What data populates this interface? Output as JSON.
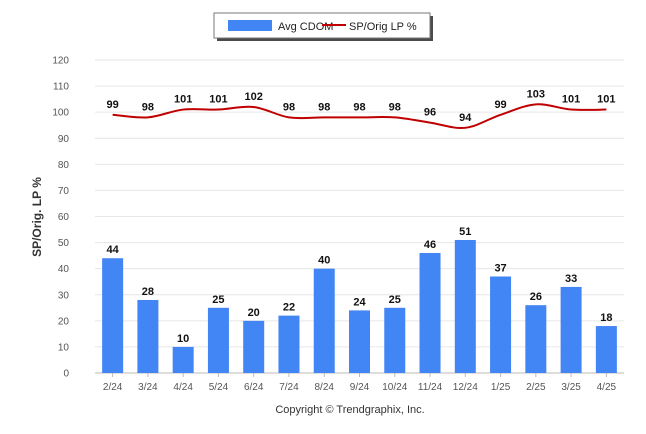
{
  "chart_data": {
    "type": "bar",
    "title": "",
    "xlabel": "",
    "ylabel": "SP/Orig. LP %",
    "ylim": [
      0,
      120
    ],
    "yticks": [
      0,
      10,
      20,
      30,
      40,
      50,
      60,
      70,
      80,
      90,
      100,
      110,
      120
    ],
    "grid": true,
    "legend_position": "top-center",
    "categories": [
      "2/24",
      "3/24",
      "4/24",
      "5/24",
      "6/24",
      "7/24",
      "8/24",
      "9/24",
      "10/24",
      "11/24",
      "12/24",
      "1/25",
      "2/25",
      "3/25",
      "4/25"
    ],
    "series": [
      {
        "name": "Avg CDOM",
        "type": "bar",
        "color": "#4285f4",
        "values": [
          44,
          28,
          10,
          25,
          20,
          22,
          40,
          24,
          25,
          46,
          51,
          37,
          26,
          33,
          18
        ]
      },
      {
        "name": "SP/Orig LP %",
        "type": "line",
        "color": "#c00000",
        "values": [
          99,
          98,
          101,
          101,
          102,
          98,
          98,
          98,
          98,
          96,
          94,
          99,
          103,
          101,
          101
        ]
      }
    ]
  },
  "footer": {
    "copyright": "Copyright © Trendgraphix, Inc."
  }
}
